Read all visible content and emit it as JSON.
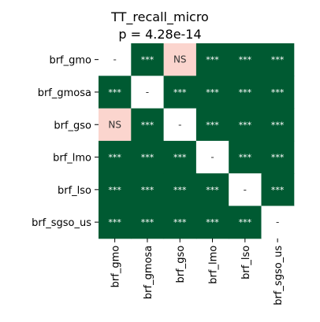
{
  "chart_data": {
    "type": "heatmap",
    "title": "TT_recall_micro",
    "subtitle": "p = 4.28e-14",
    "row_labels": [
      "brf_gmo",
      "brf_gmosa",
      "brf_gso",
      "brf_lmo",
      "brf_lso",
      "brf_sgso_us"
    ],
    "col_labels": [
      "brf_gmo",
      "brf_gmosa",
      "brf_gso",
      "brf_lmo",
      "brf_lso",
      "brf_sgso_us"
    ],
    "cells": [
      [
        "-",
        "***",
        "NS",
        "***",
        "***",
        "***"
      ],
      [
        "***",
        "-",
        "***",
        "***",
        "***",
        "***"
      ],
      [
        "NS",
        "***",
        "-",
        "***",
        "***",
        "***"
      ],
      [
        "***",
        "***",
        "***",
        "-",
        "***",
        "***"
      ],
      [
        "***",
        "***",
        "***",
        "***",
        "-",
        "***"
      ],
      [
        "***",
        "***",
        "***",
        "***",
        "***",
        "-"
      ]
    ],
    "colors": {
      "***": "#005a32",
      "NS": "#fbd5ce",
      "-": "#ffffff"
    },
    "text_colors": {
      "***": "#ffffff",
      "NS": "#333333",
      "-": "#333333"
    }
  }
}
